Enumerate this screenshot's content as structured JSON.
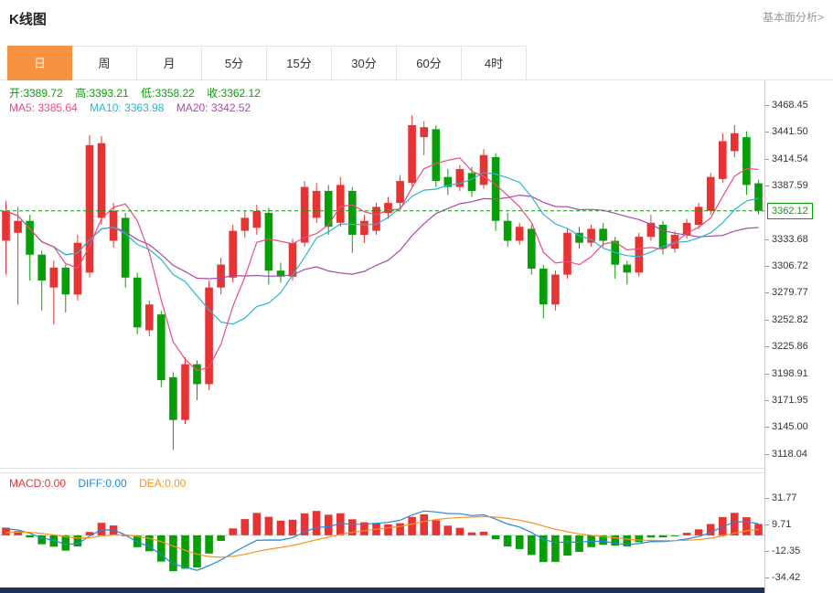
{
  "header": {
    "title": "K线图",
    "link": "基本面分析>"
  },
  "tabs": [
    {
      "label": "日",
      "active": true
    },
    {
      "label": "周",
      "active": false
    },
    {
      "label": "月",
      "active": false
    },
    {
      "label": "5分",
      "active": false
    },
    {
      "label": "15分",
      "active": false
    },
    {
      "label": "30分",
      "active": false
    },
    {
      "label": "60分",
      "active": false
    },
    {
      "label": "4时",
      "active": false
    }
  ],
  "legend": {
    "ohlc_items": [
      "开:3389.72",
      "高:3393.21",
      "低:3358.22",
      "收:3362.12"
    ],
    "ma_items": [
      "MA5: 3385.64",
      "MA10: 3363.98",
      "MA20: 3342.52"
    ]
  },
  "macd_legend_items": [
    "MACD:0.00",
    "DIFF:0.00",
    "DEA:0.00"
  ],
  "colors": {
    "accent": "#f79240",
    "up": "#e63434",
    "down": "#089e08",
    "ma5": "#ef4a7b",
    "ma10": "#28b5d0",
    "ma20": "#aa49aa",
    "diff": "#1e88e5",
    "dea": "#ff8f1f",
    "price_line": "#089e08",
    "footer": "#1b3256",
    "axis_text": "#333333"
  },
  "chart_data": {
    "type": "candlestick",
    "title": "K线图",
    "interval": "日",
    "legend_position": "top-left",
    "grid": false,
    "main": {
      "y_ticks": [
        "3468.45",
        "3441.50",
        "3414.54",
        "3387.59",
        "3333.68",
        "3306.72",
        "3279.77",
        "3252.82",
        "3225.86",
        "3198.91",
        "3171.95",
        "3145.00",
        "3118.04"
      ],
      "y_range": [
        3104,
        3493
      ],
      "current_price": "3362.12",
      "ohlc": {
        "open": 3389.72,
        "high": 3393.21,
        "low": 3358.22,
        "close": 3362.12
      },
      "ma": {
        "MA5": 3385.64,
        "MA10": 3363.98,
        "MA20": 3342.52
      },
      "ma_periods": [
        5,
        10,
        20
      ],
      "candles": [
        [
          3332,
          3372,
          3298,
          3362
        ],
        [
          3340,
          3366,
          3268,
          3352
        ],
        [
          3352,
          3358,
          3292,
          3318
        ],
        [
          3318,
          3322,
          3262,
          3292
        ],
        [
          3285,
          3312,
          3248,
          3305
        ],
        [
          3305,
          3308,
          3260,
          3278
        ],
        [
          3278,
          3338,
          3272,
          3330
        ],
        [
          3300,
          3438,
          3295,
          3428
        ],
        [
          3355,
          3437,
          3348,
          3430
        ],
        [
          3332,
          3370,
          3325,
          3362
        ],
        [
          3355,
          3360,
          3285,
          3295
        ],
        [
          3295,
          3300,
          3238,
          3245
        ],
        [
          3242,
          3272,
          3236,
          3268
        ],
        [
          3258,
          3262,
          3185,
          3192
        ],
        [
          3195,
          3200,
          3122,
          3152
        ],
        [
          3152,
          3215,
          3148,
          3208
        ],
        [
          3208,
          3212,
          3172,
          3188
        ],
        [
          3188,
          3292,
          3182,
          3285
        ],
        [
          3285,
          3315,
          3278,
          3308
        ],
        [
          3295,
          3348,
          3290,
          3342
        ],
        [
          3342,
          3362,
          3335,
          3355
        ],
        [
          3345,
          3368,
          3338,
          3362
        ],
        [
          3360,
          3365,
          3288,
          3302
        ],
        [
          3302,
          3310,
          3290,
          3296
        ],
        [
          3296,
          3334,
          3292,
          3330
        ],
        [
          3330,
          3392,
          3326,
          3386
        ],
        [
          3355,
          3390,
          3350,
          3382
        ],
        [
          3382,
          3388,
          3338,
          3346
        ],
        [
          3350,
          3396,
          3346,
          3388
        ],
        [
          3382,
          3386,
          3320,
          3338
        ],
        [
          3338,
          3358,
          3330,
          3352
        ],
        [
          3342,
          3370,
          3338,
          3366
        ],
        [
          3360,
          3376,
          3354,
          3370
        ],
        [
          3370,
          3398,
          3364,
          3392
        ],
        [
          3390,
          3458,
          3385,
          3448
        ],
        [
          3436,
          3452,
          3418,
          3446
        ],
        [
          3444,
          3448,
          3386,
          3392
        ],
        [
          3396,
          3404,
          3378,
          3386
        ],
        [
          3386,
          3408,
          3382,
          3404
        ],
        [
          3400,
          3406,
          3376,
          3382
        ],
        [
          3388,
          3424,
          3384,
          3418
        ],
        [
          3416,
          3420,
          3342,
          3352
        ],
        [
          3352,
          3360,
          3326,
          3332
        ],
        [
          3332,
          3350,
          3328,
          3346
        ],
        [
          3344,
          3348,
          3298,
          3304
        ],
        [
          3304,
          3308,
          3254,
          3268
        ],
        [
          3268,
          3302,
          3262,
          3298
        ],
        [
          3298,
          3344,
          3294,
          3340
        ],
        [
          3340,
          3346,
          3324,
          3330
        ],
        [
          3330,
          3348,
          3326,
          3344
        ],
        [
          3344,
          3350,
          3326,
          3332
        ],
        [
          3332,
          3336,
          3294,
          3308
        ],
        [
          3308,
          3312,
          3288,
          3300
        ],
        [
          3300,
          3340,
          3296,
          3336
        ],
        [
          3336,
          3358,
          3332,
          3350
        ],
        [
          3348,
          3352,
          3318,
          3324
        ],
        [
          3324,
          3342,
          3320,
          3338
        ],
        [
          3338,
          3354,
          3334,
          3350
        ],
        [
          3348,
          3370,
          3344,
          3366
        ],
        [
          3362,
          3400,
          3358,
          3396
        ],
        [
          3394,
          3440,
          3390,
          3432
        ],
        [
          3422,
          3448,
          3416,
          3440
        ],
        [
          3436,
          3442,
          3378,
          3388
        ],
        [
          3389.72,
          3393.21,
          3358.22,
          3362.12
        ]
      ]
    },
    "macd": {
      "y_ticks": [
        "31.77",
        "9.71",
        "-12.35",
        "-34.42"
      ],
      "y_range": [
        -43,
        52
      ],
      "values": {
        "MACD": 0.0,
        "DIFF": 0.0,
        "DEA": 0.0
      }
    }
  }
}
